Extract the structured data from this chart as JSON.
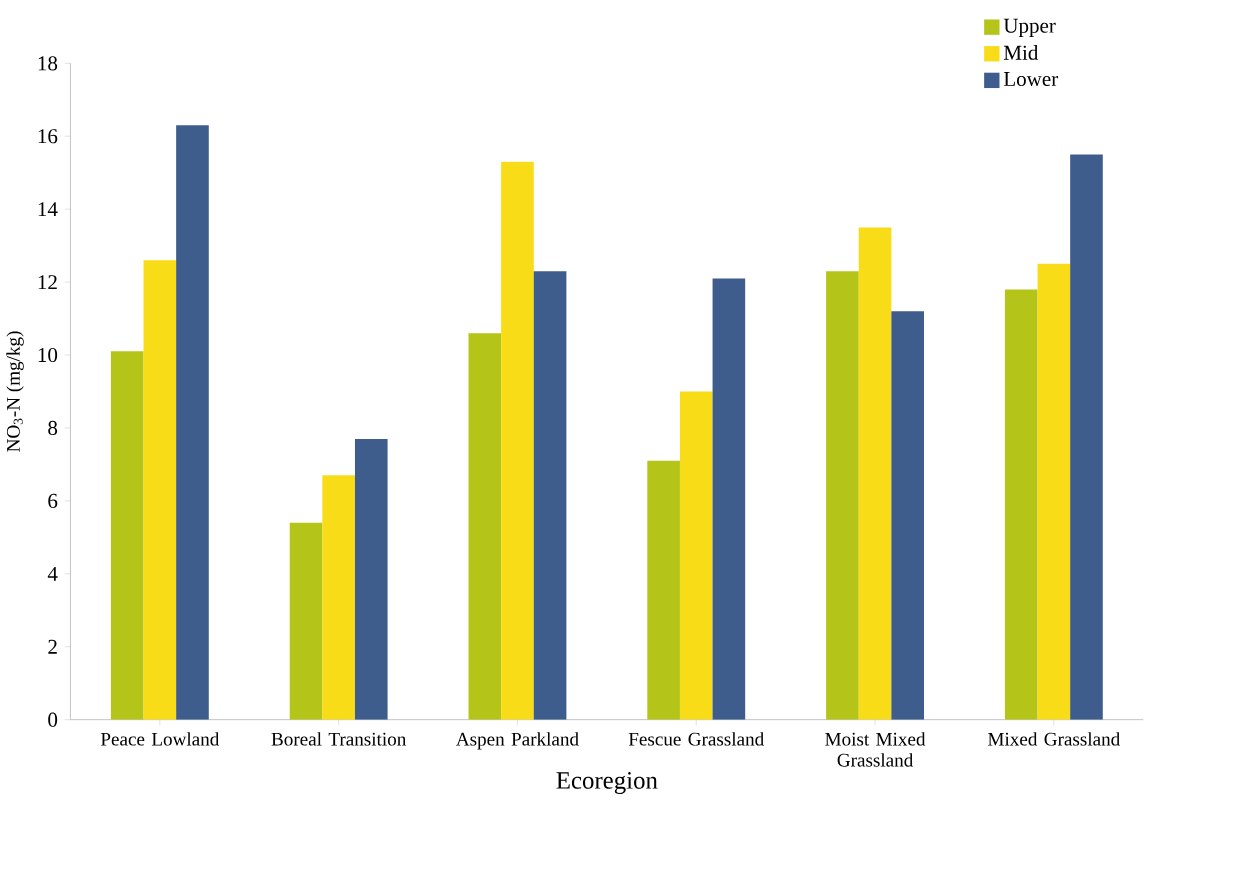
{
  "chart_data": {
    "type": "bar",
    "xlabel": "Ecoregion",
    "ylabel": "NO$_{3}$-N (mg/kg)",
    "categories": [
      "Peace Lowland",
      "Boreal Transition",
      "Aspen Parkland",
      "Fescue Grassland",
      "Moist Mixed Grassland",
      "Mixed Grassland"
    ],
    "series": [
      {
        "name": "Upper",
        "color": "#b4c418",
        "values": [
          10.1,
          5.4,
          10.6,
          7.1,
          12.3,
          11.8
        ]
      },
      {
        "name": "Mid",
        "color": "#f8dc18",
        "values": [
          12.6,
          6.7,
          15.3,
          9.0,
          13.5,
          12.5
        ]
      },
      {
        "name": "Lower",
        "color": "#3e5c8c",
        "values": [
          16.3,
          7.7,
          12.3,
          12.1,
          11.2,
          15.5
        ]
      }
    ],
    "ylim": [
      0,
      18
    ],
    "yticks": [
      0,
      2,
      4,
      6,
      8,
      10,
      12,
      14,
      16,
      18
    ],
    "grid": false,
    "legend": "top right"
  }
}
